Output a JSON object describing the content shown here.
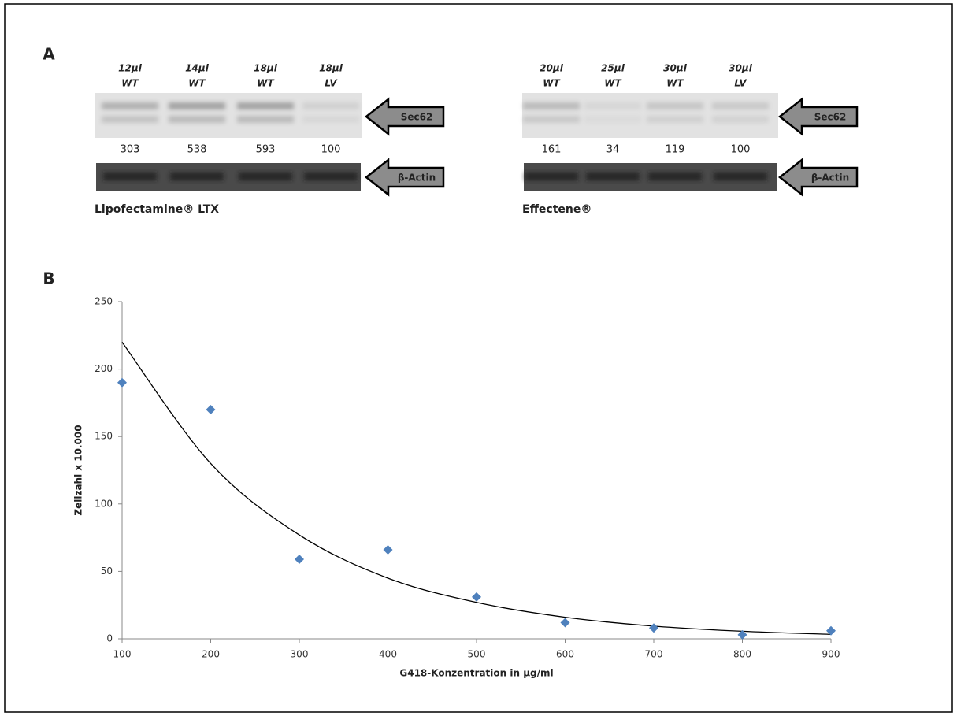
{
  "panels": {
    "a": "A",
    "b": "B"
  },
  "blots": [
    {
      "lanes": [
        {
          "volume": "12µl",
          "construct": "WT"
        },
        {
          "volume": "14µl",
          "construct": "WT"
        },
        {
          "volume": "18µl",
          "construct": "WT"
        },
        {
          "volume": "18µl",
          "construct": "LV"
        }
      ],
      "quantification": [
        303,
        538,
        593,
        100
      ],
      "markers": [
        "Sec62",
        "β-Actin"
      ],
      "caption": "Lipofectamine® LTX"
    },
    {
      "lanes": [
        {
          "volume": "20µl",
          "construct": "WT"
        },
        {
          "volume": "25µl",
          "construct": "WT"
        },
        {
          "volume": "30µl",
          "construct": "WT"
        },
        {
          "volume": "30µl",
          "construct": "LV"
        }
      ],
      "quantification": [
        161,
        34,
        119,
        100
      ],
      "markers": [
        "Sec62",
        "β-Actin"
      ],
      "caption": "Effectene®"
    }
  ],
  "chart_data": {
    "type": "scatter",
    "x_label": "G418-Konzentration in µg/ml",
    "y_label": "Zellzahl x 10.000",
    "x": [
      100,
      200,
      300,
      400,
      500,
      600,
      700,
      800,
      900
    ],
    "series": [
      {
        "color": "#4f81bd",
        "marker": "diamond",
        "values": [
          190,
          170,
          59,
          66,
          31,
          12,
          8,
          3,
          6
        ]
      }
    ],
    "trendline": {
      "type": "exponential",
      "color": "#000000",
      "values": [
        220,
        130,
        77,
        45,
        27,
        16,
        9.4,
        5.6,
        3.3
      ]
    },
    "xlim": [
      100,
      900
    ],
    "ylim": [
      0,
      250
    ],
    "xticks": [
      100,
      200,
      300,
      400,
      500,
      600,
      700,
      800,
      900
    ],
    "yticks": [
      0,
      50,
      100,
      150,
      200,
      250
    ],
    "grid": false
  }
}
